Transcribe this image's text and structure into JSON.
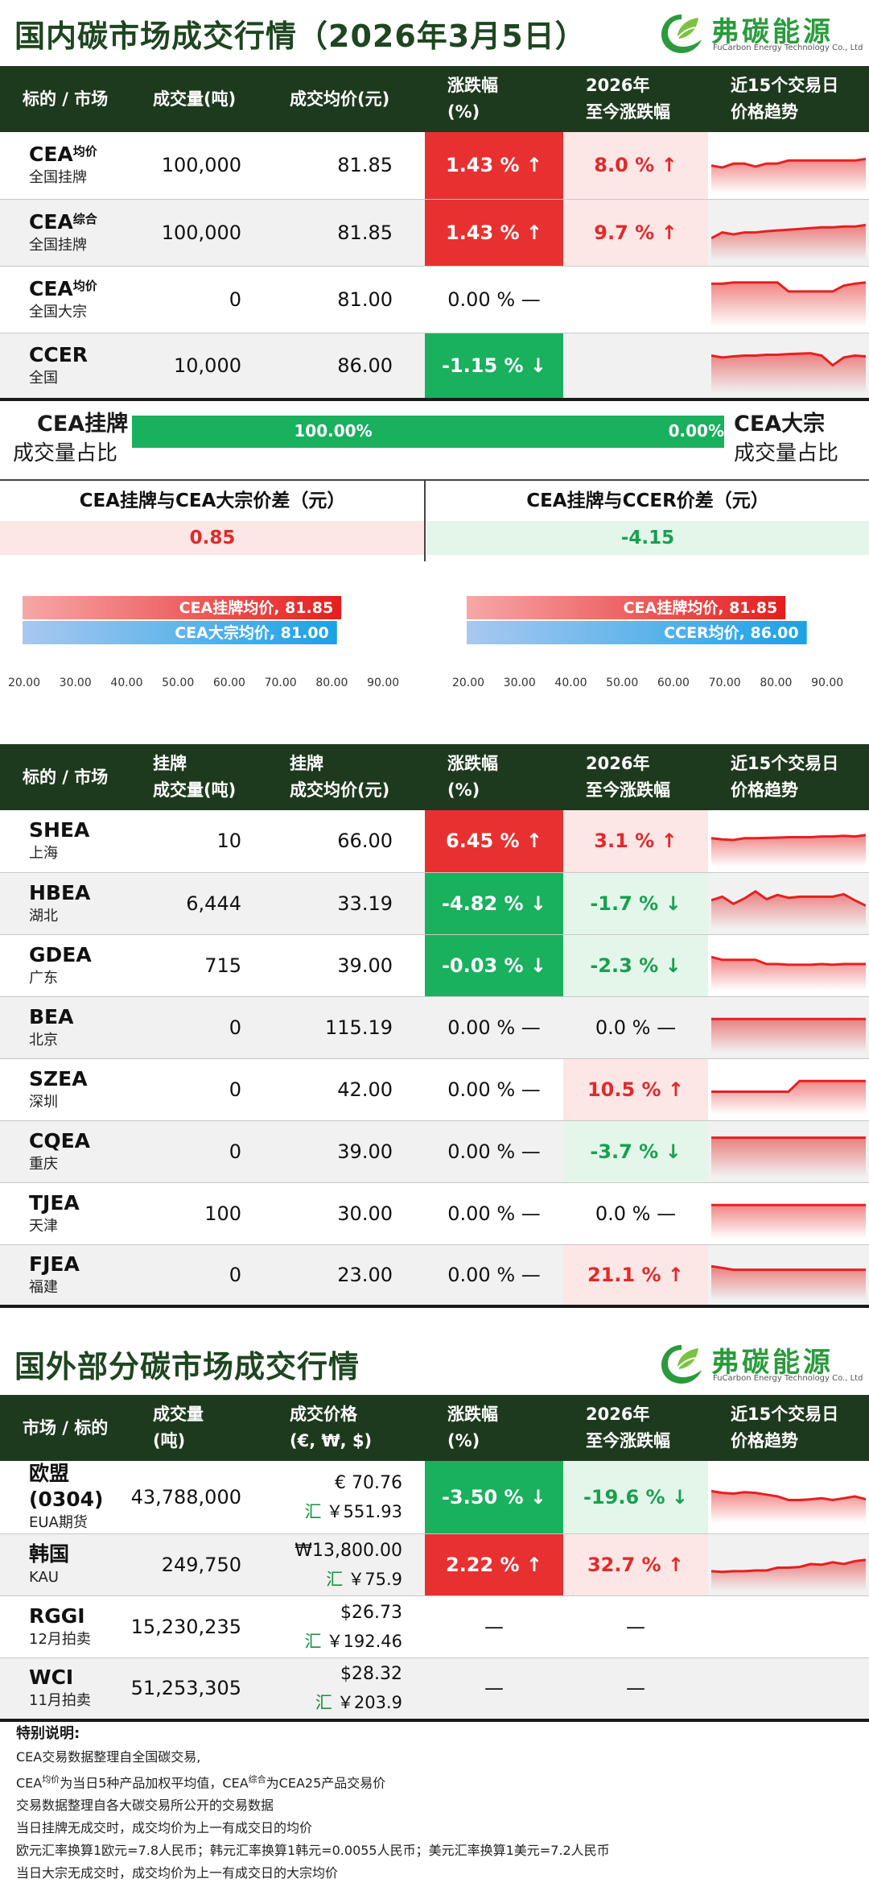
{
  "section1": {
    "title": "国内碳市场成交行情（2026年3月5日）",
    "logo_name": "弗碳能源",
    "logo_sub": "FuCarbon Energy Technology Co., Ltd"
  },
  "table1": {
    "headers": [
      "标的 / 市场",
      "成交量(吨)",
      "成交均价(元)",
      "涨跌幅\n(%)",
      "2026年\n至今涨跌幅",
      "近15个交易日\n价格趋势"
    ],
    "rows": [
      {
        "name": "CEA",
        "sup": "均价",
        "sub": "全国挂牌",
        "volume": "100,000",
        "price": "81.85",
        "change": "1.43 % ↑",
        "change_dir": "up",
        "ytd": "8.0 % ↑",
        "ytd_dir": "up",
        "trend": [
          0.55,
          0.6,
          0.5,
          0.5,
          0.58,
          0.5,
          0.5,
          0.42,
          0.42,
          0.42,
          0.42,
          0.42,
          0.42,
          0.42,
          0.38
        ]
      },
      {
        "name": "CEA",
        "sup": "综合",
        "sub": "全国挂牌",
        "volume": "100,000",
        "price": "81.85",
        "change": "1.43 % ↑",
        "change_dir": "up",
        "ytd": "9.7 % ↑",
        "ytd_dir": "up",
        "trend": [
          0.7,
          0.55,
          0.6,
          0.55,
          0.55,
          0.52,
          0.5,
          0.48,
          0.46,
          0.44,
          0.42,
          0.42,
          0.4,
          0.4,
          0.36
        ]
      },
      {
        "name": "CEA",
        "sup": "均价",
        "sub": "全国大宗",
        "volume": "0",
        "price": "81.00",
        "change": "0.00 % —",
        "change_dir": "flat",
        "ytd": "",
        "ytd_dir": "none",
        "trend": [
          0.15,
          0.15,
          0.12,
          0.12,
          0.12,
          0.12,
          0.12,
          0.35,
          0.35,
          0.35,
          0.35,
          0.35,
          0.2,
          0.15,
          0.12
        ]
      },
      {
        "name": "CCER",
        "sub": "全国",
        "volume": "10,000",
        "price": "86.00",
        "change": "-1.15 % ↓",
        "change_dir": "down",
        "ytd": "",
        "ytd_dir": "none",
        "trend": [
          0.3,
          0.35,
          0.32,
          0.3,
          0.3,
          0.28,
          0.28,
          0.26,
          0.25,
          0.24,
          0.3,
          0.55,
          0.35,
          0.3,
          0.32
        ]
      }
    ]
  },
  "share": {
    "left_top": "CEA挂牌",
    "left_bottom": "成交量占比",
    "right_top": "CEA大宗",
    "right_bottom": "成交量占比",
    "listed_pct": "100.00%",
    "block_pct": "0.00%",
    "listed_share": 1.0
  },
  "spread": {
    "left_title": "CEA挂牌与CEA大宗价差（元）",
    "left_value": "0.85",
    "right_title": "CEA挂牌与CCER价差（元）",
    "right_value": "-4.15"
  },
  "compare_left": {
    "bars": [
      {
        "label": "CEA挂牌均价, 81.85",
        "value": 81.85,
        "color": "red"
      },
      {
        "label": "CEA大宗均价, 81.00",
        "value": 81.0,
        "color": "blue"
      }
    ],
    "ticks": [
      "20.00",
      "30.00",
      "40.00",
      "50.00",
      "60.00",
      "70.00",
      "80.00",
      "90.00"
    ],
    "xlim": [
      20,
      95
    ]
  },
  "compare_right": {
    "bars": [
      {
        "label": "CEA挂牌均价, 81.85",
        "value": 81.85,
        "color": "red"
      },
      {
        "label": "CCER均价, 86.00",
        "value": 86.0,
        "color": "blue"
      }
    ],
    "ticks": [
      "20.00",
      "30.00",
      "40.00",
      "50.00",
      "60.00",
      "70.00",
      "80.00",
      "90.00"
    ],
    "xlim": [
      20,
      95
    ]
  },
  "table2": {
    "headers": [
      "标的 / 市场",
      "挂牌\n成交量(吨)",
      "挂牌\n成交均价(元)",
      "涨跌幅\n(%)",
      "2026年\n至今涨跌幅",
      "近15个交易日\n价格趋势"
    ],
    "rows": [
      {
        "name": "SHEA",
        "sub": "上海",
        "volume": "10",
        "price": "66.00",
        "change": "6.45 % ↑",
        "change_dir": "up",
        "ytd": "3.1 % ↑",
        "ytd_dir": "up",
        "trend": [
          0.45,
          0.48,
          0.5,
          0.45,
          0.45,
          0.44,
          0.43,
          0.42,
          0.42,
          0.42,
          0.4,
          0.4,
          0.38,
          0.4,
          0.36
        ]
      },
      {
        "name": "HBEA",
        "sub": "湖北",
        "volume": "6,444",
        "price": "33.19",
        "change": "-4.82 % ↓",
        "change_dir": "down",
        "ytd": "-1.7 % ↓",
        "ytd_dir": "down",
        "trend": [
          0.45,
          0.35,
          0.55,
          0.4,
          0.2,
          0.42,
          0.3,
          0.38,
          0.35,
          0.35,
          0.35,
          0.35,
          0.28,
          0.45,
          0.6
        ]
      },
      {
        "name": "GDEA",
        "sub": "广东",
        "volume": "715",
        "price": "39.00",
        "change": "-0.03 % ↓",
        "change_dir": "down",
        "ytd": "-2.3 % ↓",
        "ytd_dir": "down",
        "trend": [
          0.3,
          0.38,
          0.38,
          0.38,
          0.38,
          0.5,
          0.5,
          0.52,
          0.52,
          0.52,
          0.5,
          0.52,
          0.5,
          0.5,
          0.5
        ]
      },
      {
        "name": "BEA",
        "sub": "北京",
        "volume": "0",
        "price": "115.19",
        "change": "0.00 % —",
        "change_dir": "flat",
        "ytd": "0.0 % —",
        "ytd_dir": "flat",
        "trend": [
          0.3,
          0.3,
          0.3,
          0.3,
          0.3,
          0.3,
          0.3,
          0.3,
          0.3,
          0.3,
          0.3,
          0.3,
          0.3,
          0.3,
          0.3
        ]
      },
      {
        "name": "SZEA",
        "sub": "深圳",
        "volume": "0",
        "price": "42.00",
        "change": "0.00 % —",
        "change_dir": "flat",
        "ytd": "10.5 % ↑",
        "ytd_dir": "up",
        "trend": [
          0.6,
          0.6,
          0.6,
          0.6,
          0.6,
          0.6,
          0.6,
          0.6,
          0.3,
          0.3,
          0.3,
          0.3,
          0.3,
          0.3,
          0.3
        ]
      },
      {
        "name": "CQEA",
        "sub": "重庆",
        "volume": "0",
        "price": "39.00",
        "change": "0.00 % —",
        "change_dir": "flat",
        "ytd": "-3.7 % ↓",
        "ytd_dir": "down",
        "trend": [
          0.15,
          0.15,
          0.15,
          0.15,
          0.15,
          0.15,
          0.15,
          0.15,
          0.15,
          0.15,
          0.15,
          0.15,
          0.15,
          0.15,
          0.15
        ]
      },
      {
        "name": "TJEA",
        "sub": "天津",
        "volume": "100",
        "price": "30.00",
        "change": "0.00 % —",
        "change_dir": "flat",
        "ytd": "0.0 % —",
        "ytd_dir": "flat",
        "trend": [
          0.3,
          0.3,
          0.3,
          0.3,
          0.3,
          0.3,
          0.3,
          0.3,
          0.3,
          0.3,
          0.3,
          0.3,
          0.3,
          0.3,
          0.3
        ]
      },
      {
        "name": "FJEA",
        "sub": "福建",
        "volume": "0",
        "price": "23.00",
        "change": "0.00 % —",
        "change_dir": "flat",
        "ytd": "21.1 % ↑",
        "ytd_dir": "up",
        "trend": [
          0.3,
          0.35,
          0.4,
          0.4,
          0.4,
          0.4,
          0.4,
          0.4,
          0.4,
          0.4,
          0.4,
          0.4,
          0.4,
          0.4,
          0.4
        ]
      }
    ]
  },
  "section2": {
    "title": "国外部分碳市场成交行情",
    "logo_name": "弗碳能源",
    "logo_sub": "FuCarbon Energy Technology Co., Ltd"
  },
  "table3": {
    "headers": [
      "市场 / 标的",
      "成交量\n(吨)",
      "成交价格\n(€, ₩, $)",
      "涨跌幅\n(%)",
      "2026年\n至今涨跌幅",
      "近15个交易日\n价格趋势"
    ],
    "rows": [
      {
        "name": "欧盟(0304)",
        "sub": "EUA期货",
        "volume": "43,788,000",
        "price": "€ 70.76",
        "price_ex_label": "汇",
        "price_ex": "￥551.93",
        "change": "-3.50 % ↓",
        "change_dir": "down",
        "ytd": "-19.6 % ↓",
        "ytd_dir": "down",
        "trend": [
          0.35,
          0.4,
          0.42,
          0.38,
          0.4,
          0.45,
          0.5,
          0.6,
          0.6,
          0.58,
          0.55,
          0.6,
          0.55,
          0.5,
          0.58
        ]
      },
      {
        "name": "韩国",
        "sub": "KAU",
        "volume": "249,750",
        "price": "₩13,800.00",
        "price_ex_label": "汇",
        "price_ex": "￥75.9",
        "change": "2.22 % ↑",
        "change_dir": "up",
        "ytd": "32.7 % ↑",
        "ytd_dir": "up",
        "trend": [
          0.7,
          0.72,
          0.7,
          0.7,
          0.68,
          0.68,
          0.6,
          0.6,
          0.58,
          0.5,
          0.52,
          0.45,
          0.5,
          0.42,
          0.38
        ]
      },
      {
        "name": "RGGI",
        "sub": "12月拍卖",
        "volume": "15,230,235",
        "price": "$26.73",
        "price_ex_label": "汇",
        "price_ex": "￥192.46",
        "change": "—",
        "change_dir": "flat",
        "ytd": "—",
        "ytd_dir": "flat",
        "trend": null
      },
      {
        "name": "WCI",
        "sub": "11月拍卖",
        "volume": "51,253,305",
        "price": "$28.32",
        "price_ex_label": "汇",
        "price_ex": "￥203.9",
        "change": "—",
        "change_dir": "flat",
        "ytd": "—",
        "ytd_dir": "flat",
        "trend": null
      }
    ]
  },
  "notes": {
    "title": "特别说明:",
    "lines": [
      "CEA交易数据整理自全国碳交易,",
      "CEA均价为当日5种产品加权平均值，CEA综合为CEA25产品交易价",
      "交易数据整理自各大碳交易所公开的交易数据",
      "当日挂牌无成交时，成交均价为上一有成交日的均价",
      "欧元汇率换算1欧元=7.8人民币；韩元汇率换算1韩元=0.0055人民币；美元汇率换算1美元=7.2人民币",
      "当日大宗无成交时，成交均价为上一有成交日的大宗均价"
    ]
  }
}
